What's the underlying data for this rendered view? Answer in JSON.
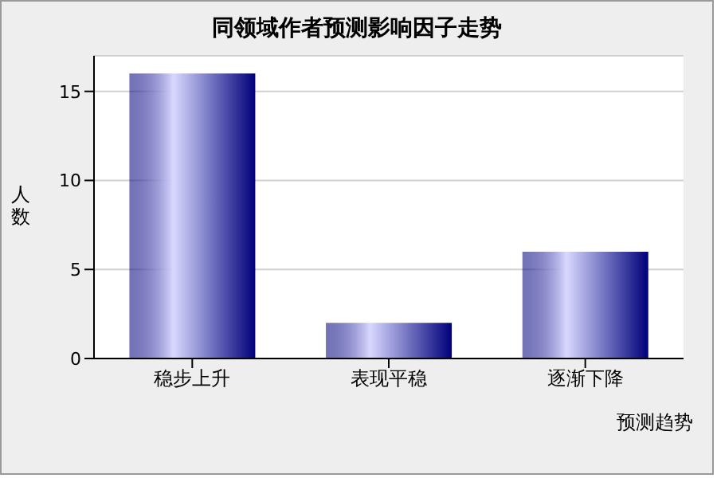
{
  "chart_data": {
    "type": "bar",
    "title": "同领域作者预测影响因子走势",
    "xlabel": "预测趋势",
    "ylabel": "人数",
    "categories": [
      "稳步上升",
      "表现平稳",
      "逐渐下降"
    ],
    "values": [
      16,
      2,
      6
    ],
    "color": "#00007a",
    "ylim": [
      0,
      17
    ],
    "yticks": [
      0,
      5,
      10,
      15
    ],
    "grid": "y",
    "legend": false
  }
}
